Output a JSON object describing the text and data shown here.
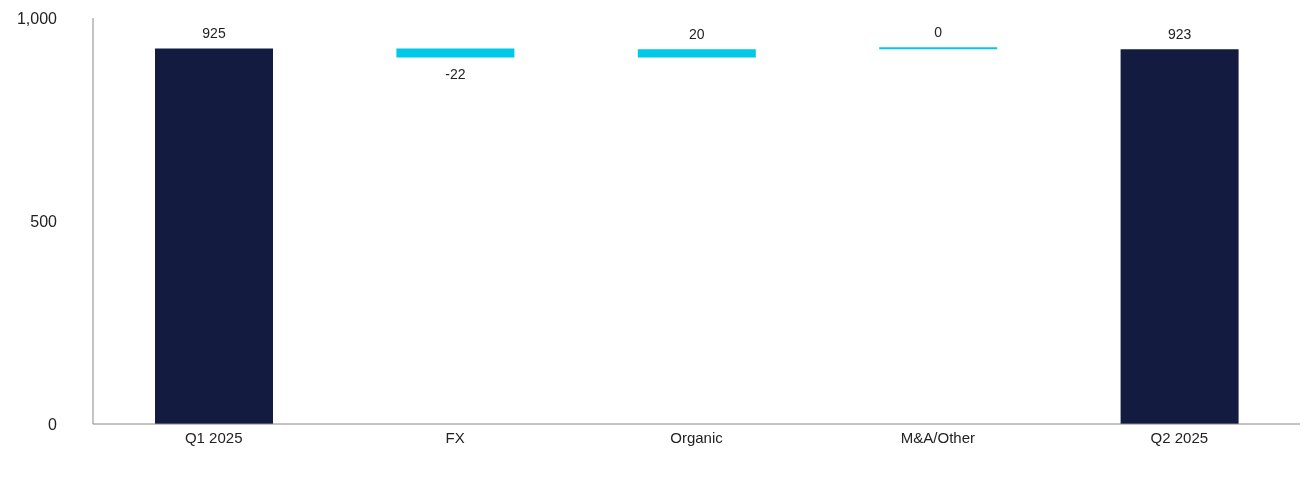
{
  "chart_data": {
    "type": "bar",
    "categories": [
      "Q1 2025",
      "FX",
      "Organic",
      "M&A/Other",
      "Q2 2025"
    ],
    "values": [
      925,
      -22,
      20,
      0,
      923
    ],
    "base": [
      0,
      925,
      903,
      923,
      0
    ],
    "colors": [
      "#131b41",
      "#00c8e8",
      "#00c8e8",
      "#00c8e8",
      "#131b41"
    ],
    "ylim": [
      0,
      1000
    ],
    "yticks": [
      0,
      500,
      {
        "value": 1000,
        "label": "1,000"
      }
    ],
    "data_labels": true,
    "grid": false,
    "legend": false
  }
}
